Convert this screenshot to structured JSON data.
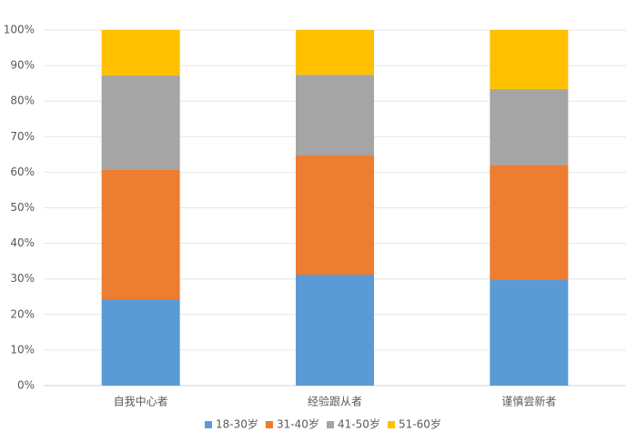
{
  "chart_data": {
    "type": "bar",
    "stacked": true,
    "categories": [
      "自我中心者",
      "经验跟从者",
      "谨慎尝新者"
    ],
    "series": [
      {
        "name": "18-30岁",
        "color": "#5b9bd5",
        "values": [
          24.3,
          31.2,
          29.8
        ]
      },
      {
        "name": "31-40岁",
        "color": "#ed7d31",
        "values": [
          36.5,
          33.5,
          32.2
        ]
      },
      {
        "name": "41-50岁",
        "color": "#a5a5a5",
        "values": [
          26.4,
          22.7,
          21.4
        ]
      },
      {
        "name": "51-60岁",
        "color": "#ffc000",
        "values": [
          12.8,
          12.6,
          16.6
        ]
      }
    ],
    "ylim": [
      0,
      100
    ],
    "yticks": [
      {
        "value": 0,
        "label": "0%"
      },
      {
        "value": 10,
        "label": "10%"
      },
      {
        "value": 20,
        "label": "20%"
      },
      {
        "value": 30,
        "label": "30%"
      },
      {
        "value": 40,
        "label": "40%"
      },
      {
        "value": 50,
        "label": "50%"
      },
      {
        "value": 60,
        "label": "60%"
      },
      {
        "value": 70,
        "label": "70%"
      },
      {
        "value": 80,
        "label": "80%"
      },
      {
        "value": 90,
        "label": "90%"
      },
      {
        "value": 100,
        "label": "100%"
      }
    ],
    "grid": true,
    "legend": "bottom"
  }
}
